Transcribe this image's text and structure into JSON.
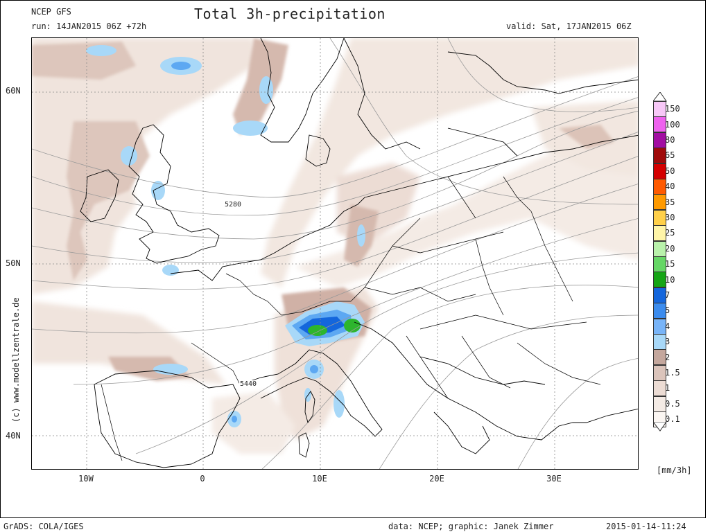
{
  "header": {
    "model": "NCEP GFS",
    "title": "Total 3h-precipitation",
    "run": "run: 14JAN2015 06Z +72h",
    "valid": "valid: Sat, 17JAN2015 06Z"
  },
  "footer": {
    "software": "GrADS: COLA/IGES",
    "credits": "data: NCEP; graphic: Janek Zimmer",
    "timestamp": "2015-01-14-11:24"
  },
  "watermark": "(c) www.modellzentrale.de",
  "axes": {
    "y_labels": [
      "60N",
      "50N",
      "40N"
    ],
    "x_labels": [
      "10W",
      "0",
      "10E",
      "20E",
      "30E"
    ]
  },
  "contour_labels": [
    "5280",
    "5440"
  ],
  "legend": {
    "unit": "[mm/3h]",
    "levels": [
      {
        "value": "150",
        "color": "#f7c8f7"
      },
      {
        "value": "100",
        "color": "#ee62ee"
      },
      {
        "value": "80",
        "color": "#a20da2"
      },
      {
        "value": "65",
        "color": "#a00a0a"
      },
      {
        "value": "50",
        "color": "#d40000"
      },
      {
        "value": "40",
        "color": "#ff5a00"
      },
      {
        "value": "35",
        "color": "#ff9a00"
      },
      {
        "value": "30",
        "color": "#ffd04a"
      },
      {
        "value": "25",
        "color": "#fff5a8"
      },
      {
        "value": "20",
        "color": "#b9f2ab"
      },
      {
        "value": "15",
        "color": "#66d766"
      },
      {
        "value": "10",
        "color": "#15a515"
      },
      {
        "value": "7",
        "color": "#1466dc"
      },
      {
        "value": "5",
        "color": "#3c8cee"
      },
      {
        "value": "4",
        "color": "#78b4f8"
      },
      {
        "value": "3",
        "color": "#a8d8f8"
      },
      {
        "value": "2",
        "color": "#c4a79d"
      },
      {
        "value": "1.5",
        "color": "#dbc4bb"
      },
      {
        "value": "1",
        "color": "#ecdcd4"
      },
      {
        "value": "0.5",
        "color": "#f4ebe5"
      },
      {
        "value": "0.1",
        "color": "#fbf6f2"
      }
    ]
  }
}
